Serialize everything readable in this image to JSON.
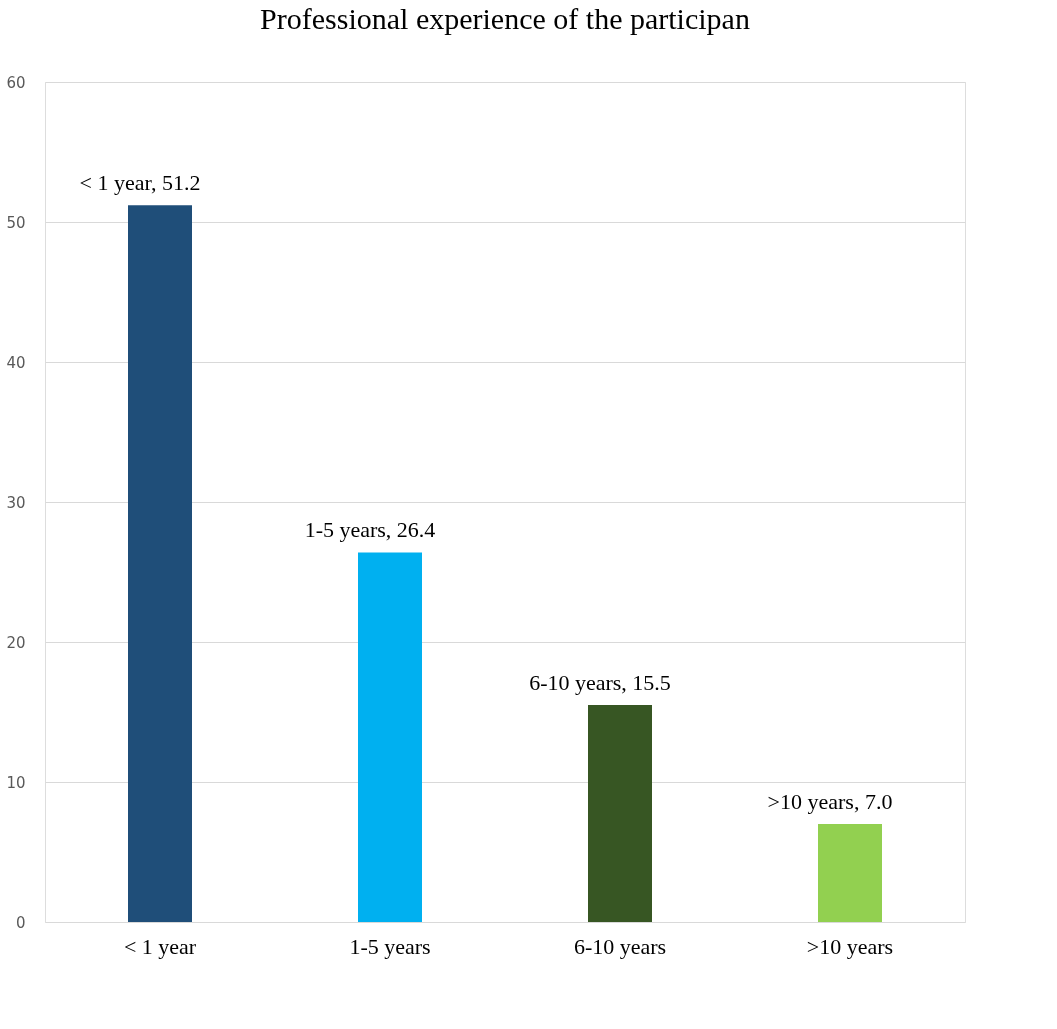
{
  "chart_data": {
    "type": "bar",
    "title": "Professional experience of the participan",
    "categories": [
      "< 1 year",
      "1-5 years",
      "6-10 years",
      ">10 years"
    ],
    "values": [
      51.2,
      26.4,
      15.5,
      7.0
    ],
    "colors": [
      "#1f4e79",
      "#00b0f0",
      "#375623",
      "#92d050"
    ],
    "value_labels": [
      "< 1 year, 51.2",
      "1-5 years, 26.4",
      "6-10 years, 15.5",
      ">10 years, 7.0"
    ],
    "ylim": [
      0,
      60
    ],
    "yticks": [
      0,
      10,
      20,
      30,
      40,
      50,
      60
    ],
    "grid": "y",
    "legend": false
  }
}
